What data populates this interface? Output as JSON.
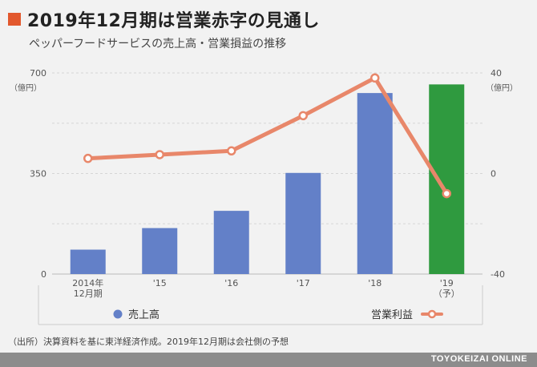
{
  "header": {
    "title": "2019年12月期は営業赤字の見通し",
    "subtitle": "ペッパーフードサービスの売上高・営業損益の推移"
  },
  "footer": {
    "source": "（出所）決算資料を基に東洋経済作成。2019年12月期は会社側の予想",
    "brand": "TOYOKEIZAI ONLINE"
  },
  "colors": {
    "accent": "#e2582d",
    "bar": "#6380c8",
    "bar_forecast": "#2f9a3f",
    "line": "#e8876a"
  },
  "chart_data": {
    "type": "bar",
    "categories": [
      "2014年\n12月期",
      "'15",
      "'16",
      "'17",
      "'18",
      "'19\n（予）"
    ],
    "series": [
      {
        "name": "売上高",
        "type": "bar",
        "axis": "left",
        "values": [
          85,
          160,
          220,
          352,
          630,
          660
        ]
      },
      {
        "name": "営業利益",
        "type": "line",
        "axis": "right",
        "values": [
          6,
          7.5,
          9,
          23,
          38,
          -8
        ]
      }
    ],
    "left_axis": {
      "unit": "（億円）",
      "ylim": [
        0,
        700
      ],
      "ticks": [
        0,
        350,
        700
      ]
    },
    "right_axis": {
      "unit": "（億円）",
      "ylim": [
        -40,
        40
      ],
      "ticks": [
        -40,
        0,
        40
      ]
    },
    "grid": true,
    "legend_position": "bottom"
  }
}
